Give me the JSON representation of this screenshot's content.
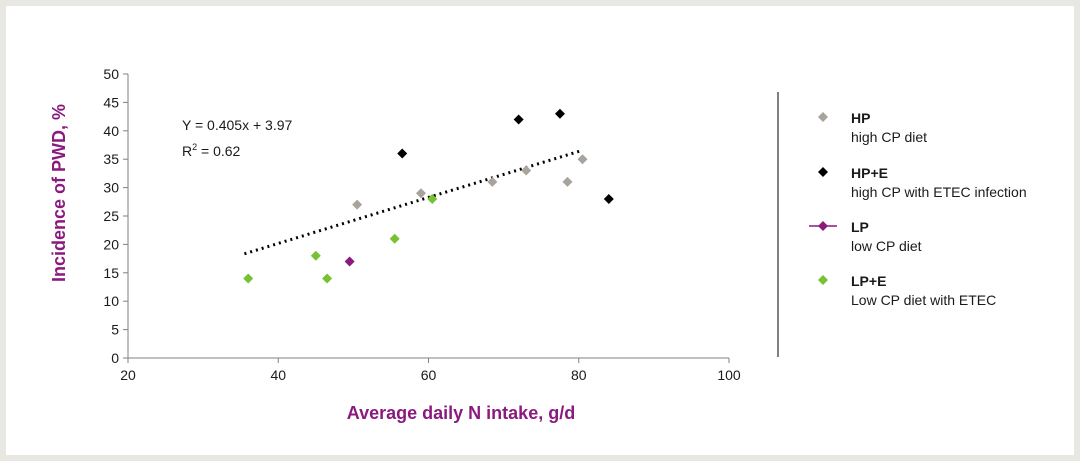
{
  "chart_data": {
    "type": "scatter",
    "xlabel": "Average daily N intake, g/d",
    "ylabel": "Incidence of PWD, %",
    "xlim": [
      20,
      100
    ],
    "ylim": [
      0,
      50
    ],
    "x_ticks": [
      "20",
      "40",
      "60",
      "80",
      "100"
    ],
    "y_ticks": [
      "0",
      "5",
      "10",
      "15",
      "20",
      "25",
      "30",
      "35",
      "40",
      "45",
      "50"
    ],
    "grid": false,
    "legend_position": "right",
    "series": [
      {
        "name": "HP",
        "description": "high CP diet",
        "color": "#a8a39b",
        "points": [
          [
            50.5,
            27
          ],
          [
            59,
            29
          ],
          [
            68.5,
            31
          ],
          [
            73,
            33
          ],
          [
            78.5,
            31
          ],
          [
            80.5,
            35
          ]
        ]
      },
      {
        "name": "HP+E",
        "description": "high CP with ETEC infection",
        "color": "#000000",
        "points": [
          [
            56.5,
            36
          ],
          [
            72,
            42
          ],
          [
            77.5,
            43
          ],
          [
            84,
            28
          ]
        ]
      },
      {
        "name": "LP",
        "description": "low CP diet",
        "color": "#8b1a7f",
        "points": [
          [
            49.5,
            17
          ]
        ]
      },
      {
        "name": "LP+E",
        "description": "Low CP diet with ETEC",
        "color": "#77c231",
        "points": [
          [
            36,
            14
          ],
          [
            45,
            18
          ],
          [
            46.5,
            14
          ],
          [
            55.5,
            21
          ],
          [
            60.5,
            28
          ]
        ]
      }
    ],
    "trendline": {
      "x_range": [
        35.5,
        80.5
      ],
      "slope": 0.405,
      "intercept": 3.97,
      "style": "dotted",
      "color": "#000000"
    },
    "annotations": {
      "equation": "Y = 0.405x + 3.97",
      "r2_prefix": "R",
      "r2_sup": "2",
      "r2_suffix": " = 0.62"
    }
  },
  "colors": {
    "axis_title": "#8b1a7f",
    "background": "#e9e7e1"
  }
}
